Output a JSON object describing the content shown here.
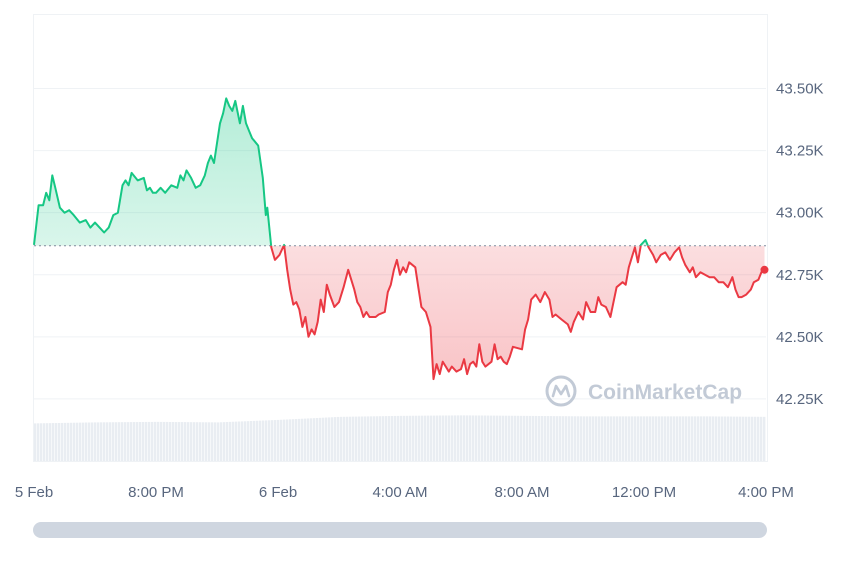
{
  "chart_data": {
    "type": "area",
    "baseline": 42867,
    "ylim": [
      42000,
      43800
    ],
    "y_ticks": [
      {
        "value": 43500,
        "label": "43.50K"
      },
      {
        "value": 43250,
        "label": "43.25K"
      },
      {
        "value": 43000,
        "label": "43.00K"
      },
      {
        "value": 42750,
        "label": "42.75K"
      },
      {
        "value": 42500,
        "label": "42.50K"
      },
      {
        "value": 42250,
        "label": "42.25K"
      }
    ],
    "x_range_hours": [
      0,
      24
    ],
    "x_ticks": [
      {
        "hours": 0,
        "label": "5 Feb"
      },
      {
        "hours": 4,
        "label": "8:00 PM"
      },
      {
        "hours": 8,
        "label": "6 Feb"
      },
      {
        "hours": 12,
        "label": "4:00 AM"
      },
      {
        "hours": 16,
        "label": "8:00 AM"
      },
      {
        "hours": 20,
        "label": "12:00 PM"
      },
      {
        "hours": 24,
        "label": "4:00 PM"
      }
    ],
    "price_series": [
      [
        0.0,
        42870
      ],
      [
        0.15,
        43030
      ],
      [
        0.3,
        43030
      ],
      [
        0.4,
        43080
      ],
      [
        0.5,
        43050
      ],
      [
        0.6,
        43150
      ],
      [
        0.7,
        43100
      ],
      [
        0.85,
        43020
      ],
      [
        1.0,
        43000
      ],
      [
        1.15,
        43010
      ],
      [
        1.3,
        42990
      ],
      [
        1.5,
        42960
      ],
      [
        1.7,
        42970
      ],
      [
        1.85,
        42940
      ],
      [
        2.0,
        42960
      ],
      [
        2.15,
        42940
      ],
      [
        2.3,
        42920
      ],
      [
        2.45,
        42940
      ],
      [
        2.6,
        42990
      ],
      [
        2.75,
        43000
      ],
      [
        2.9,
        43110
      ],
      [
        3.0,
        43130
      ],
      [
        3.1,
        43110
      ],
      [
        3.2,
        43160
      ],
      [
        3.4,
        43130
      ],
      [
        3.6,
        43140
      ],
      [
        3.7,
        43090
      ],
      [
        3.8,
        43100
      ],
      [
        3.9,
        43080
      ],
      [
        4.0,
        43080
      ],
      [
        4.15,
        43100
      ],
      [
        4.3,
        43080
      ],
      [
        4.5,
        43110
      ],
      [
        4.7,
        43100
      ],
      [
        4.8,
        43150
      ],
      [
        4.9,
        43130
      ],
      [
        5.0,
        43170
      ],
      [
        5.15,
        43140
      ],
      [
        5.3,
        43100
      ],
      [
        5.45,
        43110
      ],
      [
        5.6,
        43150
      ],
      [
        5.7,
        43200
      ],
      [
        5.8,
        43230
      ],
      [
        5.9,
        43200
      ],
      [
        6.0,
        43280
      ],
      [
        6.1,
        43360
      ],
      [
        6.2,
        43400
      ],
      [
        6.3,
        43460
      ],
      [
        6.4,
        43430
      ],
      [
        6.5,
        43410
      ],
      [
        6.6,
        43450
      ],
      [
        6.75,
        43360
      ],
      [
        6.85,
        43430
      ],
      [
        6.95,
        43360
      ],
      [
        7.05,
        43330
      ],
      [
        7.15,
        43300
      ],
      [
        7.35,
        43270
      ],
      [
        7.5,
        43140
      ],
      [
        7.6,
        42990
      ],
      [
        7.65,
        43020
      ],
      [
        7.78,
        42860
      ],
      [
        7.9,
        42810
      ],
      [
        8.05,
        42830
      ],
      [
        8.2,
        42870
      ],
      [
        8.3,
        42770
      ],
      [
        8.4,
        42690
      ],
      [
        8.5,
        42630
      ],
      [
        8.6,
        42640
      ],
      [
        8.7,
        42610
      ],
      [
        8.8,
        42540
      ],
      [
        8.9,
        42580
      ],
      [
        9.0,
        42500
      ],
      [
        9.1,
        42530
      ],
      [
        9.2,
        42510
      ],
      [
        9.3,
        42560
      ],
      [
        9.4,
        42650
      ],
      [
        9.5,
        42600
      ],
      [
        9.6,
        42710
      ],
      [
        9.7,
        42670
      ],
      [
        9.85,
        42620
      ],
      [
        10.0,
        42640
      ],
      [
        10.15,
        42700
      ],
      [
        10.3,
        42770
      ],
      [
        10.5,
        42690
      ],
      [
        10.6,
        42640
      ],
      [
        10.7,
        42620
      ],
      [
        10.8,
        42580
      ],
      [
        10.9,
        42600
      ],
      [
        11.0,
        42580
      ],
      [
        11.2,
        42580
      ],
      [
        11.3,
        42590
      ],
      [
        11.5,
        42600
      ],
      [
        11.6,
        42680
      ],
      [
        11.7,
        42710
      ],
      [
        11.8,
        42770
      ],
      [
        11.9,
        42810
      ],
      [
        12.0,
        42750
      ],
      [
        12.1,
        42780
      ],
      [
        12.2,
        42760
      ],
      [
        12.3,
        42800
      ],
      [
        12.5,
        42780
      ],
      [
        12.6,
        42700
      ],
      [
        12.7,
        42620
      ],
      [
        12.85,
        42600
      ],
      [
        13.0,
        42540
      ],
      [
        13.1,
        42330
      ],
      [
        13.2,
        42390
      ],
      [
        13.3,
        42350
      ],
      [
        13.4,
        42400
      ],
      [
        13.5,
        42380
      ],
      [
        13.6,
        42360
      ],
      [
        13.7,
        42380
      ],
      [
        13.85,
        42360
      ],
      [
        14.0,
        42370
      ],
      [
        14.1,
        42410
      ],
      [
        14.2,
        42350
      ],
      [
        14.3,
        42390
      ],
      [
        14.4,
        42400
      ],
      [
        14.5,
        42380
      ],
      [
        14.6,
        42470
      ],
      [
        14.7,
        42400
      ],
      [
        14.8,
        42380
      ],
      [
        15.0,
        42400
      ],
      [
        15.1,
        42470
      ],
      [
        15.2,
        42410
      ],
      [
        15.3,
        42420
      ],
      [
        15.4,
        42400
      ],
      [
        15.5,
        42390
      ],
      [
        15.6,
        42420
      ],
      [
        15.7,
        42460
      ],
      [
        16.0,
        42450
      ],
      [
        16.1,
        42530
      ],
      [
        16.2,
        42570
      ],
      [
        16.3,
        42650
      ],
      [
        16.45,
        42670
      ],
      [
        16.6,
        42640
      ],
      [
        16.75,
        42680
      ],
      [
        16.9,
        42650
      ],
      [
        17.0,
        42580
      ],
      [
        17.1,
        42590
      ],
      [
        17.3,
        42570
      ],
      [
        17.5,
        42550
      ],
      [
        17.6,
        42520
      ],
      [
        17.7,
        42560
      ],
      [
        17.85,
        42600
      ],
      [
        18.0,
        42570
      ],
      [
        18.1,
        42640
      ],
      [
        18.25,
        42600
      ],
      [
        18.4,
        42600
      ],
      [
        18.5,
        42660
      ],
      [
        18.6,
        42630
      ],
      [
        18.75,
        42620
      ],
      [
        18.9,
        42580
      ],
      [
        19.0,
        42640
      ],
      [
        19.1,
        42700
      ],
      [
        19.2,
        42710
      ],
      [
        19.3,
        42720
      ],
      [
        19.4,
        42710
      ],
      [
        19.5,
        42780
      ],
      [
        19.6,
        42820
      ],
      [
        19.7,
        42860
      ],
      [
        19.8,
        42800
      ],
      [
        19.9,
        42870
      ],
      [
        20.05,
        42890
      ],
      [
        20.15,
        42860
      ],
      [
        20.3,
        42830
      ],
      [
        20.4,
        42800
      ],
      [
        20.55,
        42830
      ],
      [
        20.7,
        42840
      ],
      [
        20.85,
        42810
      ],
      [
        21.0,
        42840
      ],
      [
        21.15,
        42860
      ],
      [
        21.25,
        42820
      ],
      [
        21.35,
        42790
      ],
      [
        21.5,
        42760
      ],
      [
        21.6,
        42780
      ],
      [
        21.7,
        42740
      ],
      [
        21.85,
        42760
      ],
      [
        22.0,
        42750
      ],
      [
        22.15,
        42740
      ],
      [
        22.3,
        42740
      ],
      [
        22.45,
        42720
      ],
      [
        22.6,
        42720
      ],
      [
        22.75,
        42700
      ],
      [
        22.9,
        42740
      ],
      [
        23.0,
        42690
      ],
      [
        23.1,
        42660
      ],
      [
        23.2,
        42660
      ],
      [
        23.35,
        42670
      ],
      [
        23.5,
        42690
      ],
      [
        23.6,
        42720
      ],
      [
        23.75,
        42730
      ],
      [
        23.85,
        42760
      ],
      [
        23.95,
        42770
      ]
    ],
    "volume_series": [
      [
        0,
        0.75
      ],
      [
        2,
        0.77
      ],
      [
        4,
        0.78
      ],
      [
        6,
        0.77
      ],
      [
        8,
        0.82
      ],
      [
        9,
        0.85
      ],
      [
        10,
        0.88
      ],
      [
        12,
        0.9
      ],
      [
        14,
        0.91
      ],
      [
        16,
        0.9
      ],
      [
        18,
        0.89
      ],
      [
        20,
        0.89
      ],
      [
        22,
        0.89
      ],
      [
        24,
        0.88
      ]
    ],
    "colors": {
      "up": "#16c784",
      "down": "#ea3943",
      "baseline": "#808a9d",
      "grid": "#eff2f5",
      "volume": "#e9edf2",
      "tick_text": "#58667e",
      "watermark": "#c2cad6"
    },
    "grid": true
  },
  "watermark": {
    "text": "CoinMarketCap",
    "icon": "coinmarketcap-logo-icon"
  },
  "scrollbar": {
    "icon": "horizontal-scrollbar"
  }
}
